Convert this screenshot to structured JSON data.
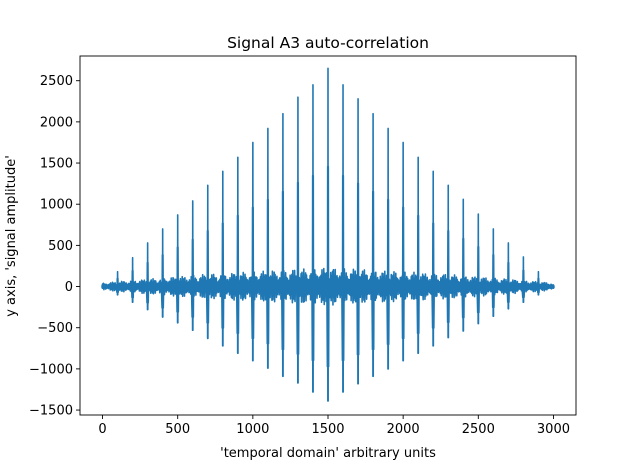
{
  "chart_data": {
    "type": "line",
    "title": "Signal A3 auto-correlation",
    "xlabel": "'temporal domain' arbitrary units",
    "ylabel": "y axis, 'signal amplitude'",
    "xlim": [
      -150,
      3150
    ],
    "ylim": [
      -1560,
      2800
    ],
    "x_ticks": [
      0,
      500,
      1000,
      1500,
      2000,
      2500,
      3000
    ],
    "x_tick_labels": [
      "0",
      "500",
      "1000",
      "1500",
      "2000",
      "2500",
      "3000"
    ],
    "y_ticks": [
      -1500,
      -1000,
      -500,
      0,
      500,
      1000,
      1500,
      2000,
      2500
    ],
    "y_tick_labels": [
      "−1500",
      "−1000",
      "−500",
      "0",
      "500",
      "1000",
      "1500",
      "2000",
      "2500"
    ],
    "grid": false,
    "line_color": "#1f77b4",
    "series": [
      {
        "peak_positions": [
          0,
          100,
          200,
          300,
          400,
          500,
          600,
          700,
          800,
          900,
          1000,
          1100,
          1200,
          1300,
          1400,
          1500,
          1600,
          1700,
          1800,
          1900,
          2000,
          2100,
          2200,
          2300,
          2400,
          2500,
          2600,
          2700,
          2800,
          2900,
          3000
        ],
        "peak_maxima": [
          30,
          180,
          350,
          530,
          700,
          870,
          1040,
          1230,
          1400,
          1570,
          1750,
          1920,
          2100,
          2300,
          2450,
          2650,
          2450,
          2280,
          2100,
          1920,
          1750,
          1570,
          1400,
          1230,
          1060,
          880,
          700,
          530,
          360,
          180,
          20
        ],
        "peak_minima": [
          -20,
          -100,
          -190,
          -280,
          -370,
          -440,
          -530,
          -630,
          -720,
          -810,
          -900,
          -990,
          -1090,
          -1170,
          -1280,
          -1390,
          -1280,
          -1180,
          -1090,
          -1000,
          -900,
          -810,
          -720,
          -620,
          -540,
          -450,
          -360,
          -270,
          -190,
          -100,
          -20
        ],
        "background_amplitude": [
          40,
          60,
          75,
          90,
          105,
          120,
          135,
          150,
          160,
          170,
          180,
          190,
          200,
          210,
          220,
          230,
          220,
          210,
          200,
          190,
          180,
          170,
          160,
          150,
          135,
          120,
          105,
          90,
          75,
          60,
          40
        ]
      }
    ]
  }
}
